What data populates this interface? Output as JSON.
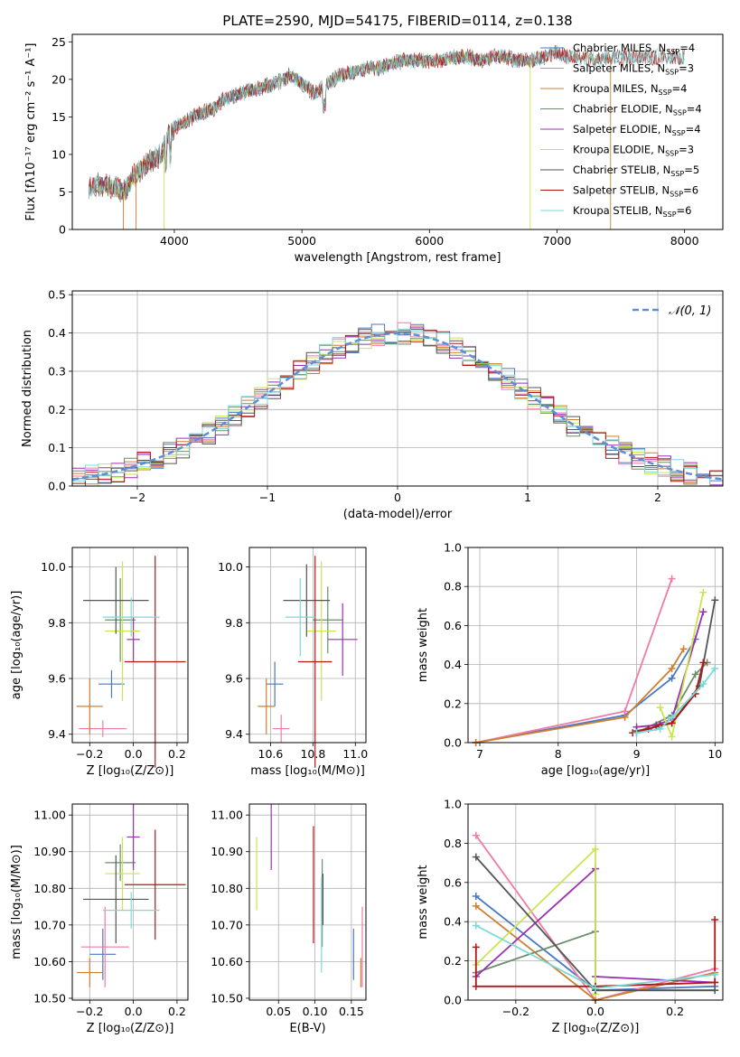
{
  "chart_data": [
    {
      "id": "spectrum",
      "type": "line",
      "title": "PLATE=2590, MJD=54175, FIBERID=0114, z=0.138",
      "xlabel": "wavelength [Angstrom, rest frame]",
      "ylabel": "Flux [fλ10⁻¹⁷ erg cm⁻² s⁻¹ A⁻¹]",
      "xlim": [
        3200,
        8300
      ],
      "ylim": [
        0,
        26
      ],
      "xticks": [
        4000,
        5000,
        6000,
        7000,
        8000
      ],
      "yticks": [
        0,
        5,
        10,
        15,
        20,
        25
      ],
      "envelope": {
        "x": [
          3330,
          3400,
          3500,
          3600,
          3700,
          3800,
          3900,
          3950,
          4000,
          4100,
          4200,
          4300,
          4400,
          4500,
          4600,
          4700,
          4800,
          4900,
          5000,
          5100,
          5200,
          5300,
          5400,
          5500,
          5600,
          5700,
          5800,
          5900,
          6000,
          6100,
          6200,
          6300,
          6400,
          6500,
          6600,
          6700,
          6800,
          6900,
          7000,
          7100,
          7200,
          7300,
          7400
        ],
        "y": [
          5.5,
          6.0,
          5.8,
          5.0,
          7.5,
          9.0,
          10.0,
          12.5,
          13.5,
          14.5,
          15.5,
          16.0,
          17.5,
          18.0,
          18.5,
          19.0,
          19.5,
          20.5,
          19.5,
          18.0,
          19.5,
          20.5,
          21.0,
          21.5,
          21.5,
          22.0,
          22.5,
          22.5,
          22.5,
          22.5,
          23.0,
          23.0,
          22.5,
          23.0,
          23.0,
          22.5,
          22.5,
          23.0,
          23.5,
          23.0,
          23.0,
          22.5,
          23.0
        ]
      },
      "series": [
        {
          "name": "Chabrier MILES, N_SSP=4",
          "legend_main": "Chabrier MILES, N",
          "legend_sub": "SSP",
          "legend_tail": "=4",
          "color": "#4a78c2",
          "xmax": 7100
        },
        {
          "name": "Salpeter MILES, N_SSP=3",
          "legend_main": "Salpeter MILES, N",
          "legend_sub": "SSP",
          "legend_tail": "=3",
          "color": "#f07aa8",
          "xmax": 7100
        },
        {
          "name": "Kroupa MILES, N_SSP=4",
          "legend_main": "Kroupa MILES, N",
          "legend_sub": "SSP",
          "legend_tail": "=4",
          "color": "#cd7f32",
          "xmax": 7420
        },
        {
          "name": "Chabrier ELODIE, N_SSP=4",
          "legend_main": "Chabrier ELODIE, N",
          "legend_sub": "SSP",
          "legend_tail": "=4",
          "color": "#6a8f6a",
          "xmax": 6800
        },
        {
          "name": "Salpeter ELODIE, N_SSP=4",
          "legend_main": "Salpeter ELODIE, N",
          "legend_sub": "SSP",
          "legend_tail": "=4",
          "color": "#9b30b0",
          "xmax": 6800
        },
        {
          "name": "Kroupa ELODIE, N_SSP=3",
          "legend_main": "Kroupa ELODIE, N",
          "legend_sub": "SSP",
          "legend_tail": "=3",
          "color": "#c8e650",
          "xmax": 6800
        },
        {
          "name": "Chabrier STELIB, N_SSP=5",
          "legend_main": "Chabrier STELIB, N",
          "legend_sub": "SSP",
          "legend_tail": "=5",
          "color": "#555555",
          "xmax": 8000
        },
        {
          "name": "Salpeter STELIB, N_SSP=6",
          "legend_main": "Salpeter STELIB, N",
          "legend_sub": "SSP",
          "legend_tail": "=6",
          "color": "#b01818",
          "xmax": 8000
        },
        {
          "name": "Kroupa STELIB, N_SSP=6",
          "legend_main": "Kroupa STELIB, N",
          "legend_sub": "SSP",
          "legend_tail": "=6",
          "color": "#7dd8d8",
          "xmax": 8000
        }
      ]
    },
    {
      "id": "residuals",
      "type": "line",
      "xlabel": "(data-model)/error",
      "ylabel": "Normed distribution",
      "xlim": [
        -2.5,
        2.5
      ],
      "ylim": [
        0,
        0.51
      ],
      "xticks": [
        -2,
        -1,
        0,
        1,
        2
      ],
      "yticks": [
        0.0,
        0.1,
        0.2,
        0.3,
        0.4,
        0.5
      ],
      "legend": "𝒩(0, 1)",
      "legend_color": "#5b8fd6",
      "bin_width": 0.1
    },
    {
      "id": "age-vs-z",
      "type": "scatter",
      "xlabel": "Z [log₁₀(Z/Z⊙)]",
      "ylabel": "age  [log₁₀(age/yr)]",
      "xlim": [
        -0.28,
        0.25
      ],
      "ylim": [
        9.37,
        10.07
      ],
      "xticks": [
        -0.2,
        0.0,
        0.2
      ],
      "yticks": [
        9.4,
        9.6,
        9.8,
        10.0
      ],
      "points": [
        {
          "x": -0.1,
          "y": 9.58,
          "xerr": 0.06,
          "yerr": 0.05,
          "color": "#4a78c2"
        },
        {
          "x": -0.14,
          "y": 9.42,
          "xerr": 0.11,
          "yerr": 0.03,
          "color": "#f07aa8"
        },
        {
          "x": -0.2,
          "y": 9.5,
          "xerr": 0.06,
          "yerr": 0.1,
          "color": "#cd7f32"
        },
        {
          "x": -0.06,
          "y": 9.81,
          "xerr": 0.07,
          "yerr": 0.15,
          "color": "#6a8f6a"
        },
        {
          "x": 0.0,
          "y": 9.74,
          "xerr": 0.03,
          "yerr": 0.08,
          "color": "#9b30b0"
        },
        {
          "x": -0.05,
          "y": 9.77,
          "xerr": 0.08,
          "yerr": 0.25,
          "color": "#c8e650"
        },
        {
          "x": -0.08,
          "y": 9.88,
          "xerr": 0.15,
          "yerr": 0.12,
          "color": "#555555"
        },
        {
          "x": 0.1,
          "y": 9.66,
          "xerr": 0.14,
          "yerr": 0.38,
          "color": "#b01818"
        },
        {
          "x": -0.01,
          "y": 9.82,
          "xerr": 0.13,
          "yerr": 0.07,
          "color": "#7dd8d8"
        }
      ]
    },
    {
      "id": "age-vs-mass",
      "type": "scatter",
      "xlabel": "mass [log₁₀(M/M⊙)]",
      "ylabel": "",
      "xlim": [
        10.5,
        11.05
      ],
      "ylim": [
        9.37,
        10.07
      ],
      "xticks": [
        10.6,
        10.8,
        11.0
      ],
      "yticks": [
        9.4,
        9.6,
        9.8,
        10.0
      ],
      "points": [
        {
          "x": 10.62,
          "y": 9.58,
          "xerr": 0.04,
          "yerr": 0.08,
          "color": "#4a78c2"
        },
        {
          "x": 10.65,
          "y": 9.42,
          "xerr": 0.04,
          "yerr": 0.05,
          "color": "#f07aa8"
        },
        {
          "x": 10.58,
          "y": 9.5,
          "xerr": 0.04,
          "yerr": 0.1,
          "color": "#cd7f32"
        },
        {
          "x": 10.87,
          "y": 9.81,
          "xerr": 0.07,
          "yerr": 0.12,
          "color": "#6a8f6a"
        },
        {
          "x": 10.94,
          "y": 9.74,
          "xerr": 0.07,
          "yerr": 0.13,
          "color": "#9b30b0"
        },
        {
          "x": 10.84,
          "y": 9.77,
          "xerr": 0.07,
          "yerr": 0.25,
          "color": "#c8e650"
        },
        {
          "x": 10.77,
          "y": 9.88,
          "xerr": 0.11,
          "yerr": 0.13,
          "color": "#555555"
        },
        {
          "x": 10.81,
          "y": 9.66,
          "xerr": 0.08,
          "yerr": 0.38,
          "color": "#b01818"
        },
        {
          "x": 10.74,
          "y": 9.82,
          "xerr": 0.07,
          "yerr": 0.14,
          "color": "#7dd8d8"
        }
      ]
    },
    {
      "id": "weight-vs-age",
      "type": "line",
      "xlabel": "age  [log₁₀(age/yr)]",
      "ylabel": "mass weight",
      "xlim": [
        6.85,
        10.1
      ],
      "ylim": [
        0,
        1
      ],
      "xticks": [
        7,
        8,
        9,
        10
      ],
      "yticks": [
        0.0,
        0.2,
        0.4,
        0.6,
        0.8,
        1.0
      ],
      "series": [
        {
          "color": "#4a78c2",
          "x": [
            6.95,
            8.85,
            9.45,
            9.75
          ],
          "y": [
            0.0,
            0.14,
            0.33,
            0.53
          ]
        },
        {
          "color": "#f07aa8",
          "x": [
            6.95,
            8.85,
            9.45
          ],
          "y": [
            0.0,
            0.16,
            0.84
          ]
        },
        {
          "color": "#cd7f32",
          "x": [
            6.95,
            8.85,
            9.45,
            9.6
          ],
          "y": [
            0.0,
            0.13,
            0.38,
            0.48
          ]
        },
        {
          "color": "#6a8f6a",
          "x": [
            9.0,
            9.45,
            9.75,
            9.9
          ],
          "y": [
            0.05,
            0.14,
            0.35,
            0.41
          ]
        },
        {
          "color": "#9b30b0",
          "x": [
            9.0,
            9.25,
            9.45,
            9.85
          ],
          "y": [
            0.08,
            0.09,
            0.12,
            0.67
          ]
        },
        {
          "color": "#c8e650",
          "x": [
            9.3,
            9.45,
            9.85
          ],
          "y": [
            0.18,
            0.03,
            0.77
          ]
        },
        {
          "color": "#555555",
          "x": [
            9.0,
            9.25,
            9.45,
            9.8,
            10.0
          ],
          "y": [
            0.06,
            0.08,
            0.1,
            0.29,
            0.73
          ]
        },
        {
          "color": "#b01818",
          "x": [
            8.95,
            9.15,
            9.3,
            9.45,
            9.75,
            9.85
          ],
          "y": [
            0.05,
            0.07,
            0.09,
            0.1,
            0.25,
            0.41
          ]
        },
        {
          "color": "#7dd8d8",
          "x": [
            9.0,
            9.3,
            9.45,
            9.85,
            10.0
          ],
          "y": [
            0.05,
            0.07,
            0.13,
            0.3,
            0.38
          ]
        }
      ]
    },
    {
      "id": "mass-vs-z",
      "type": "scatter",
      "xlabel": "Z [log₁₀(Z/Z⊙)]",
      "ylabel": "mass [log₁₀(M/M⊙)]",
      "xlim": [
        -0.28,
        0.25
      ],
      "ylim": [
        10.495,
        11.03
      ],
      "xticks": [
        -0.2,
        0.0,
        0.2
      ],
      "yticks": [
        10.5,
        10.6,
        10.7,
        10.8,
        10.9,
        11.0
      ],
      "points": [
        {
          "x": -0.14,
          "y": 10.62,
          "xerr": 0.06,
          "yerr": 0.07,
          "color": "#4a78c2"
        },
        {
          "x": -0.13,
          "y": 10.64,
          "xerr": 0.11,
          "yerr": 0.11,
          "color": "#f07aa8"
        },
        {
          "x": -0.2,
          "y": 10.57,
          "xerr": 0.06,
          "yerr": 0.04,
          "color": "#cd7f32"
        },
        {
          "x": -0.06,
          "y": 10.87,
          "xerr": 0.07,
          "yerr": 0.05,
          "color": "#6a8f6a"
        },
        {
          "x": 0.0,
          "y": 10.94,
          "xerr": 0.03,
          "yerr": 0.09,
          "color": "#9b30b0"
        },
        {
          "x": -0.05,
          "y": 10.84,
          "xerr": 0.08,
          "yerr": 0.1,
          "color": "#c8e650"
        },
        {
          "x": -0.08,
          "y": 10.77,
          "xerr": 0.15,
          "yerr": 0.12,
          "color": "#555555"
        },
        {
          "x": 0.1,
          "y": 10.81,
          "xerr": 0.14,
          "yerr": 0.15,
          "color": "#b01818"
        },
        {
          "x": -0.01,
          "y": 10.74,
          "xerr": 0.13,
          "yerr": 0.05,
          "color": "#7dd8d8"
        }
      ]
    },
    {
      "id": "mass-vs-ebv",
      "type": "scatter",
      "xlabel": "E(B-V)",
      "ylabel": "",
      "xlim": [
        0.01,
        0.17
      ],
      "ylim": [
        10.495,
        11.03
      ],
      "xticks": [
        0.05,
        0.1,
        0.15
      ],
      "yticks": [
        10.5,
        10.6,
        10.7,
        10.8,
        10.9,
        11.0
      ],
      "points": [
        {
          "x": 0.153,
          "y": 10.62,
          "xerr": 0,
          "yerr": 0.07,
          "color": "#4a78c2"
        },
        {
          "x": 0.165,
          "y": 10.64,
          "xerr": 0,
          "yerr": 0.11,
          "color": "#f07aa8"
        },
        {
          "x": 0.163,
          "y": 10.57,
          "xerr": 0,
          "yerr": 0.04,
          "color": "#cd7f32"
        },
        {
          "x": 0.11,
          "y": 10.76,
          "xerr": 0,
          "yerr": 0.12,
          "color": "#6a8f6a"
        },
        {
          "x": 0.04,
          "y": 10.94,
          "xerr": 0,
          "yerr": 0.09,
          "color": "#9b30b0"
        },
        {
          "x": 0.02,
          "y": 10.84,
          "xerr": 0,
          "yerr": 0.1,
          "color": "#c8e650"
        },
        {
          "x": 0.111,
          "y": 10.77,
          "xerr": 0,
          "yerr": 0.07,
          "color": "#555555"
        },
        {
          "x": 0.098,
          "y": 10.81,
          "xerr": 0,
          "yerr": 0.16,
          "color": "#b01818"
        },
        {
          "x": 0.109,
          "y": 10.7,
          "xerr": 0,
          "yerr": 0.13,
          "color": "#7dd8d8"
        }
      ]
    },
    {
      "id": "weight-vs-z",
      "type": "line",
      "xlabel": "Z [log₁₀(Z/Z⊙)]",
      "ylabel": "mass weight",
      "xlim": [
        -0.32,
        0.32
      ],
      "ylim": [
        0,
        1
      ],
      "xticks": [
        -0.2,
        0.0,
        0.2
      ],
      "yticks": [
        0.0,
        0.2,
        0.4,
        0.6,
        0.8,
        1.0
      ],
      "series": [
        {
          "color": "#4a78c2",
          "x": [
            -0.3,
            0.0,
            0.3
          ],
          "y": [
            0.53,
            0.05,
            0.07
          ]
        },
        {
          "color": "#f07aa8",
          "x": [
            -0.3,
            0.0,
            0.3
          ],
          "y": [
            0.84,
            0.0,
            0.16
          ]
        },
        {
          "color": "#cd7f32",
          "x": [
            -0.3,
            0.0,
            0.3
          ],
          "y": [
            0.48,
            0.0,
            0.14
          ]
        },
        {
          "color": "#6a8f6a",
          "x": [
            -0.3,
            0.0,
            0.0,
            0.3
          ],
          "y": [
            0.14,
            0.35,
            0.05,
            0.05
          ]
        },
        {
          "color": "#9b30b0",
          "x": [
            -0.3,
            0.0,
            0.0,
            0.3
          ],
          "y": [
            0.12,
            0.67,
            0.12,
            0.09
          ]
        },
        {
          "color": "#c8e650",
          "x": [
            -0.3,
            0.0,
            0.0
          ],
          "y": [
            0.18,
            0.77,
            0.03
          ]
        },
        {
          "color": "#555555",
          "x": [
            -0.3,
            0.0,
            0.3
          ],
          "y": [
            0.73,
            0.05,
            0.05
          ]
        },
        {
          "color": "#b01818",
          "x": [
            -0.3,
            -0.3,
            0.0,
            0.3,
            0.3
          ],
          "y": [
            0.27,
            0.07,
            0.07,
            0.09,
            0.41
          ]
        },
        {
          "color": "#7dd8d8",
          "x": [
            -0.3,
            0.0,
            0.3
          ],
          "y": [
            0.38,
            0.06,
            0.13
          ]
        }
      ]
    }
  ]
}
